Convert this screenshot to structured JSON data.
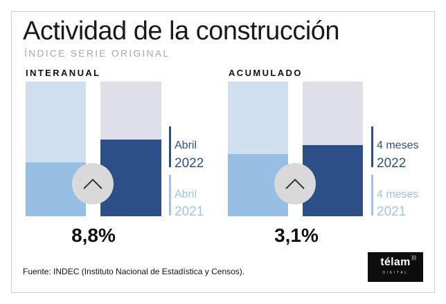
{
  "title": "Actividad de la construcción",
  "subtitle": "ÍNDICE SERIE ORIGINAL",
  "source": "Fuente: INDEC (Instituto Nacional de Estadística y Censos).",
  "logo": {
    "word": "télam",
    "sub": "DIGITAL"
  },
  "colors": {
    "light_bg": "#cfdfef",
    "light_fill": "#96bfe3",
    "dark_bg": "#dedfe9",
    "dark_fill": "#2b4f86",
    "legend_dark": "#2b4f86",
    "legend_light": "#9ec3e6"
  },
  "chart_data": [
    {
      "type": "bar",
      "panel_label": "INTERANUAL",
      "series": [
        {
          "legend_line1": "Abril",
          "legend_line2": "2021",
          "value_fraction": 0.4
        },
        {
          "legend_line1": "Abril",
          "legend_line2": "2022",
          "value_fraction": 0.57
        }
      ],
      "change_label": "8,8%"
    },
    {
      "type": "bar",
      "panel_label": "ACUMULADO",
      "series": [
        {
          "legend_line1": "4 meses",
          "legend_line2": "2021",
          "value_fraction": 0.46
        },
        {
          "legend_line1": "4 meses",
          "legend_line2": "2022",
          "value_fraction": 0.53
        }
      ],
      "change_label": "3,1%"
    }
  ]
}
